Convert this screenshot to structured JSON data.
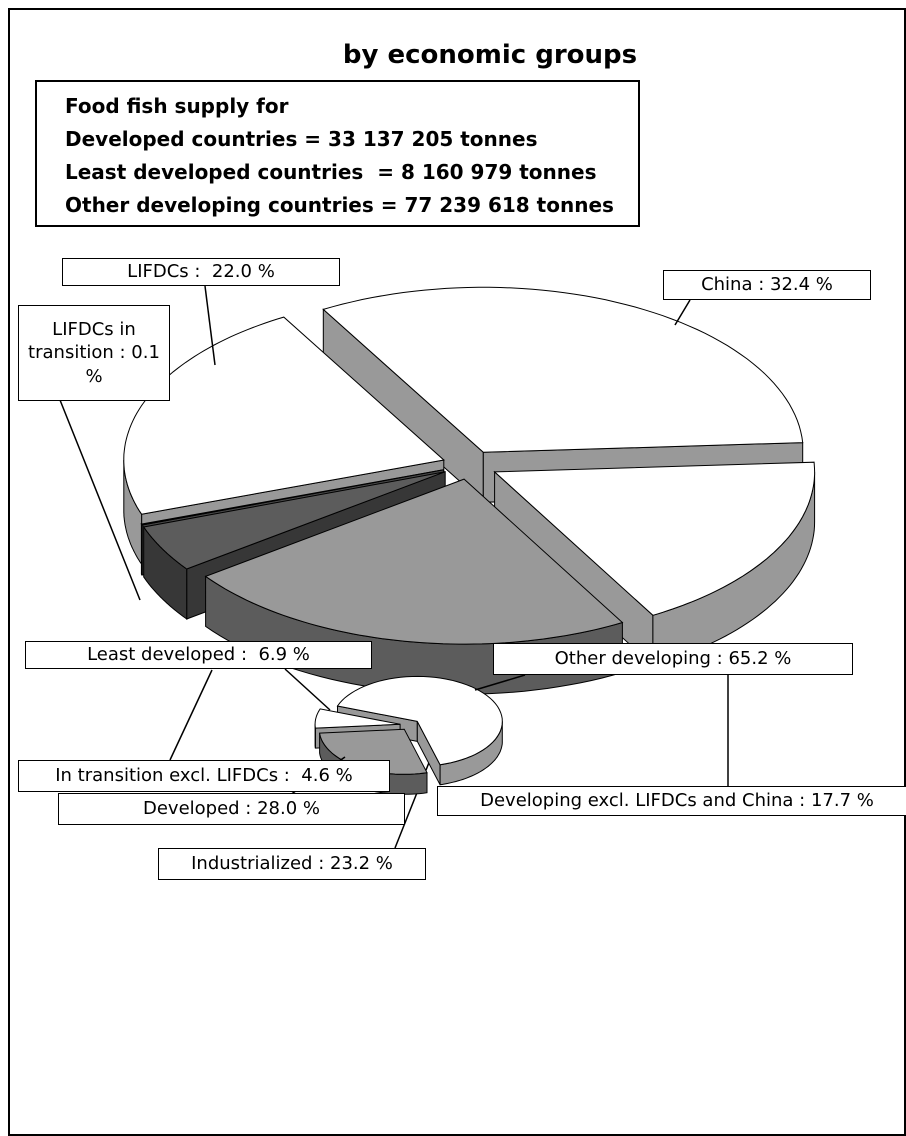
{
  "chart_data": [
    {
      "type": "pie",
      "title": "by economic groups",
      "annotations": [
        "Food fish supply for",
        "Developed countries = 33 137 205 tonnes",
        "Least developed countries  = 8 160 979 tonnes",
        "Other developing countries = 77 239 618 tonnes"
      ],
      "values": [
        32.4,
        17.7,
        23.2,
        4.6,
        0.1,
        22.0
      ],
      "value_labels": [
        "China : 32.4 %",
        "Developing excl. LIFDCs and China : 17.7 %",
        "Industrialized : 23.2 %",
        "In transition excl. LIFDCs :  4.6 %",
        "LIFDCs in transition : 0.1 %",
        "LIFDCs :  22.0 %"
      ],
      "colors": [
        "#ffffff",
        "#ffffff",
        "#999999",
        "#5c5c5c",
        "#777777",
        "#ffffff"
      ]
    },
    {
      "type": "pie",
      "values": [
        65.2,
        28.0,
        6.9
      ],
      "value_labels": [
        "Other developing : 65.2 %",
        "Developed : 28.0 %",
        "Least developed :  6.9 %"
      ],
      "colors": [
        "#ffffff",
        "#999999",
        "#ffffff"
      ]
    }
  ]
}
